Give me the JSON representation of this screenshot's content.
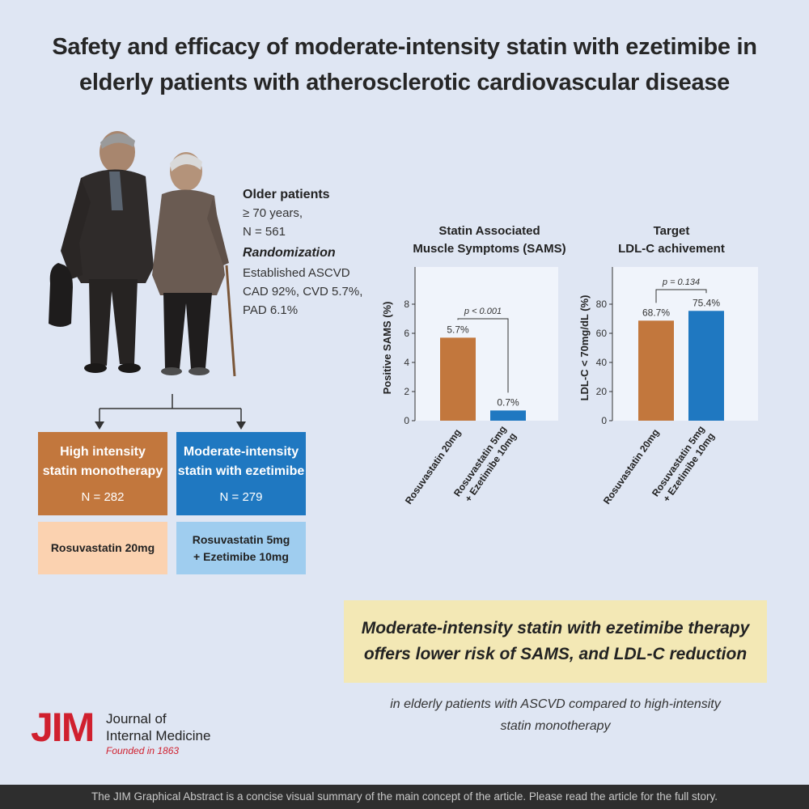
{
  "title": {
    "line1": "Safety and efficacy of moderate-intensity statin with ezetimibe in",
    "line2": "elderly patients with atherosclerotic cardiovascular disease"
  },
  "population": {
    "heading": "Older patients",
    "age": "≥ 70 years,",
    "n": "N = 561",
    "randomization": "Randomization",
    "ascvd": "Established ASCVD",
    "cad_cvd": "CAD 92%, CVD 5.7%,",
    "pad": "PAD 6.1%"
  },
  "arms": {
    "high": {
      "title1": "High intensity",
      "title2": "statin monotherapy",
      "n": "N = 282",
      "drug": "Rosuvastatin 20mg"
    },
    "moderate": {
      "title1": "Moderate-intensity",
      "title2": "statin with ezetimibe",
      "n": "N = 279",
      "drug1": "Rosuvastatin 5mg",
      "drug2": "+ Ezetimibe 10mg"
    }
  },
  "colors": {
    "orange": "#c2773d",
    "blue": "#1f78c1",
    "light_orange": "#fbd2b0",
    "light_blue": "#9fcdef"
  },
  "chart_data": [
    {
      "type": "bar",
      "title": [
        "Statin Associated",
        "Muscle Symptoms (SAMS)"
      ],
      "ylabel": "Positive SAMS (%)",
      "ylim": [
        0,
        10
      ],
      "yticks": [
        0,
        2,
        4,
        6,
        8
      ],
      "categories": [
        "Rosuvastatin 20mg",
        "Rosuvastatin 5mg\n+ Ezetimibe 10mg"
      ],
      "values": [
        5.7,
        0.7
      ],
      "labels": [
        "5.7%",
        "0.7%"
      ],
      "p_value": "p < 0.001",
      "grid": false
    },
    {
      "type": "bar",
      "title": [
        "Target",
        "LDL-C achivement"
      ],
      "ylabel": "LDL-C < 70mg/dL (%)",
      "ylim": [
        0,
        100
      ],
      "yticks": [
        0,
        20,
        40,
        60,
        80
      ],
      "categories": [
        "Rosuvastatin 20mg",
        "Rosuvastatin 5mg\n+ Ezetimibe 10mg"
      ],
      "values": [
        68.7,
        75.4
      ],
      "labels": [
        "68.7%",
        "75.4%"
      ],
      "p_value": "p = 0.134",
      "grid": false
    }
  ],
  "conclusion": {
    "line1": "Moderate-intensity statin with ezetimibe therapy",
    "line2": "offers lower risk of SAMS, and LDL-C reduction",
    "sub1": "in elderly patients with ASCVD compared to high-intensity",
    "sub2": "statin monotherapy"
  },
  "logo": {
    "mark": "JIM",
    "line1": "Journal of",
    "line2": "Internal Medicine",
    "founded": "Founded in 1863"
  },
  "footer": "The JIM Graphical Abstract is a concise visual summary of the main concept of the article. Please read the article for the full story."
}
